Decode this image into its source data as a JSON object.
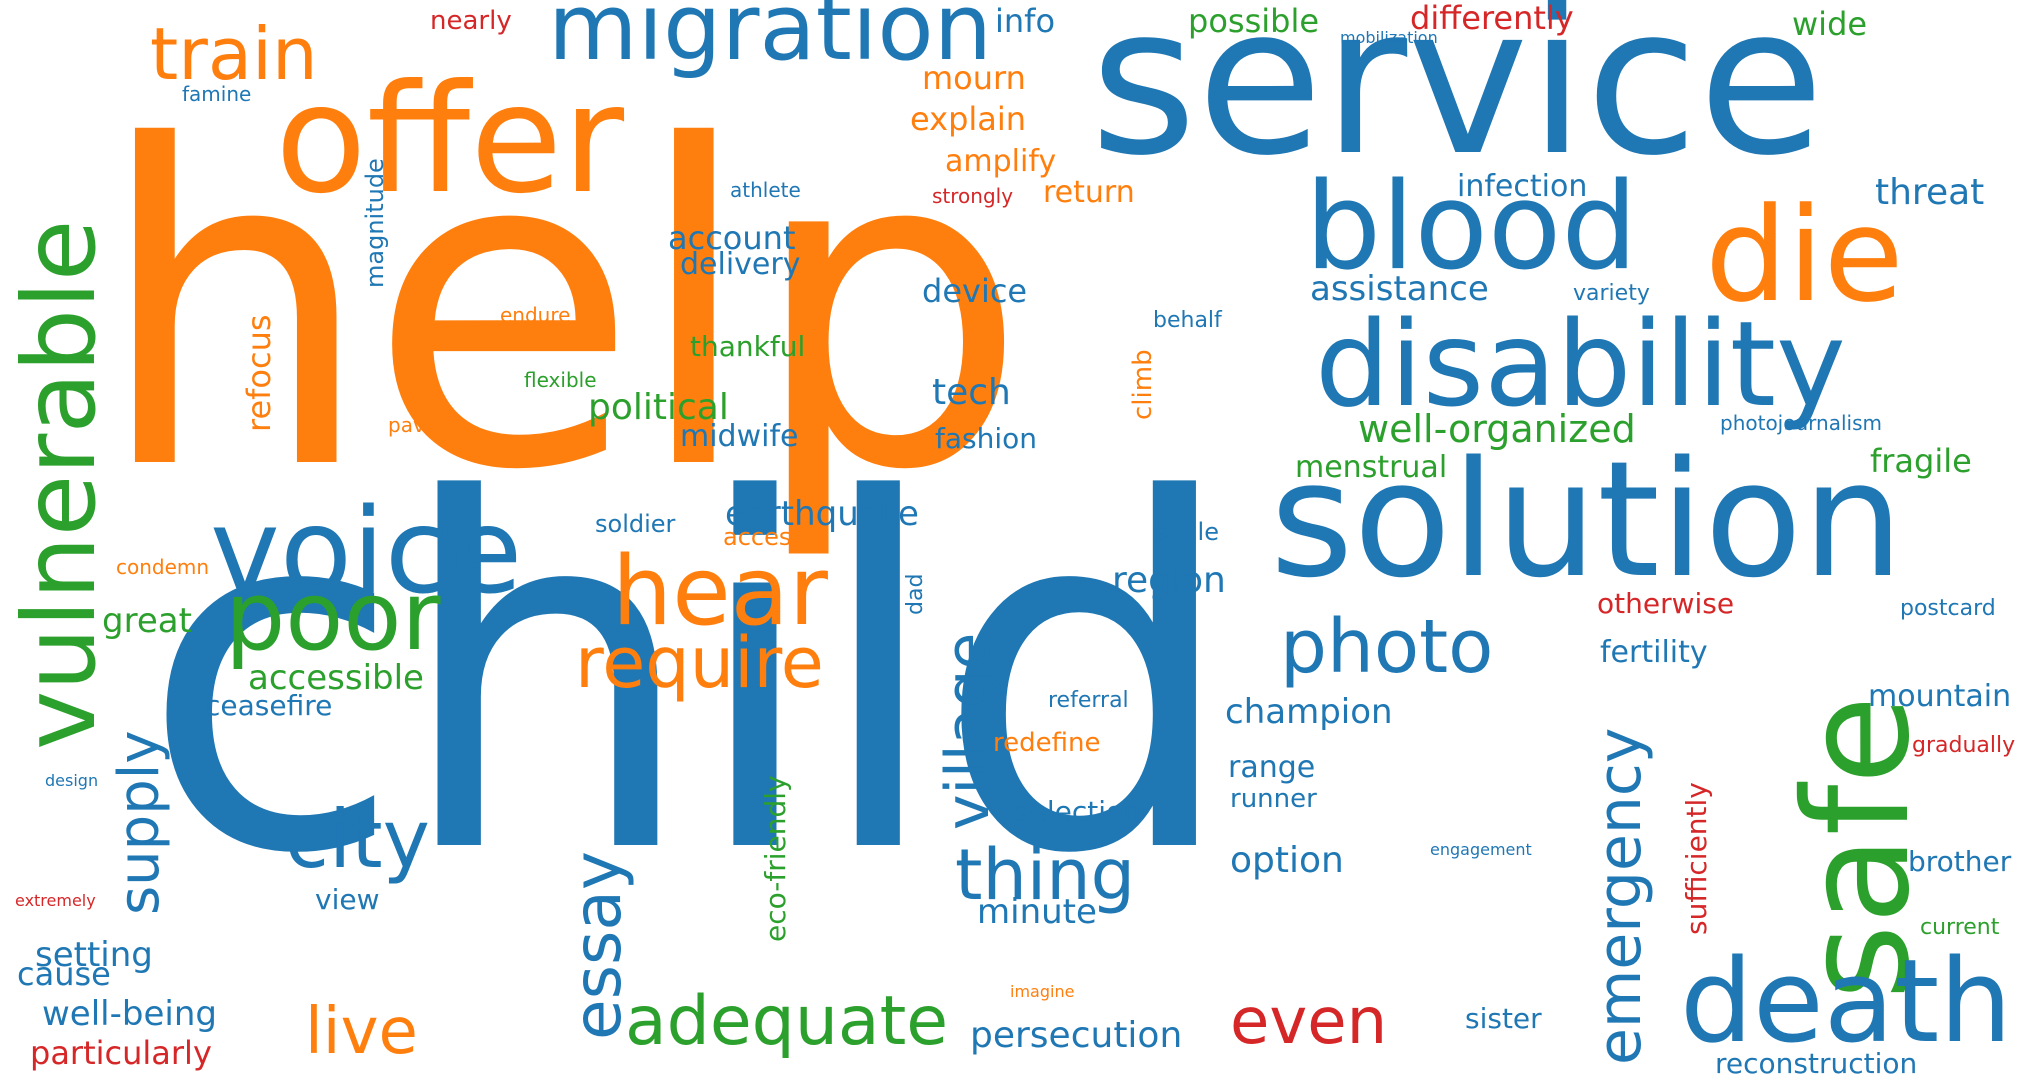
{
  "palette": {
    "blue": "#1f77b4",
    "orange": "#ff7f0e",
    "green": "#2ca02c",
    "red": "#d62728"
  },
  "words": [
    {
      "text": "help",
      "color": "blue_or_orange"
    },
    {
      "text": "child"
    },
    {
      "text": "service"
    },
    {
      "text": "offer"
    },
    {
      "text": "vulnerable"
    },
    {
      "text": "migration"
    },
    {
      "text": "train"
    },
    {
      "text": "blood"
    },
    {
      "text": "die"
    },
    {
      "text": "disability"
    },
    {
      "text": "solution"
    },
    {
      "text": "safe"
    },
    {
      "text": "voice"
    },
    {
      "text": "poor"
    },
    {
      "text": "hear"
    },
    {
      "text": "require"
    },
    {
      "text": "death"
    },
    {
      "text": "photo"
    },
    {
      "text": "city"
    },
    {
      "text": "thing"
    },
    {
      "text": "village"
    },
    {
      "text": "essay"
    },
    {
      "text": "adequate"
    },
    {
      "text": "emergency"
    },
    {
      "text": "supply"
    },
    {
      "text": "even"
    },
    {
      "text": "live"
    },
    {
      "text": "info"
    },
    {
      "text": "possible"
    },
    {
      "text": "differently"
    },
    {
      "text": "wide"
    },
    {
      "text": "nearly"
    },
    {
      "text": "mobilization"
    },
    {
      "text": "famine"
    },
    {
      "text": "mourn"
    },
    {
      "text": "explain"
    },
    {
      "text": "amplify"
    },
    {
      "text": "magnitude"
    },
    {
      "text": "athlete"
    },
    {
      "text": "strongly"
    },
    {
      "text": "return"
    },
    {
      "text": "infection"
    },
    {
      "text": "threat"
    },
    {
      "text": "account"
    },
    {
      "text": "delivery"
    },
    {
      "text": "device"
    },
    {
      "text": "assistance"
    },
    {
      "text": "variety"
    },
    {
      "text": "refocus"
    },
    {
      "text": "endure"
    },
    {
      "text": "thankful"
    },
    {
      "text": "behalf"
    },
    {
      "text": "climb"
    },
    {
      "text": "flexible"
    },
    {
      "text": "political"
    },
    {
      "text": "tech"
    },
    {
      "text": "pave"
    },
    {
      "text": "midwife"
    },
    {
      "text": "fashion"
    },
    {
      "text": "well-organized"
    },
    {
      "text": "photojournalism"
    },
    {
      "text": "menstrual"
    },
    {
      "text": "fragile"
    },
    {
      "text": "earthquake"
    },
    {
      "text": "soldier"
    },
    {
      "text": "access"
    },
    {
      "text": "smile"
    },
    {
      "text": "condemn"
    },
    {
      "text": "region"
    },
    {
      "text": "dad"
    },
    {
      "text": "great"
    },
    {
      "text": "otherwise"
    },
    {
      "text": "postcard"
    },
    {
      "text": "fertility"
    },
    {
      "text": "accessible"
    },
    {
      "text": "ceasefire"
    },
    {
      "text": "referral"
    },
    {
      "text": "champion"
    },
    {
      "text": "mountain"
    },
    {
      "text": "redefine"
    },
    {
      "text": "gradually"
    },
    {
      "text": "design"
    },
    {
      "text": "range"
    },
    {
      "text": "runner"
    },
    {
      "text": "sufficiently"
    },
    {
      "text": "selection"
    },
    {
      "text": "eco-friendly"
    },
    {
      "text": "option"
    },
    {
      "text": "engagement"
    },
    {
      "text": "brother"
    },
    {
      "text": "extremely"
    },
    {
      "text": "view"
    },
    {
      "text": "minute"
    },
    {
      "text": "setting"
    },
    {
      "text": "cause"
    },
    {
      "text": "current"
    },
    {
      "text": "well-being"
    },
    {
      "text": "imagine"
    },
    {
      "text": "persecution"
    },
    {
      "text": "sister"
    },
    {
      "text": "particularly"
    },
    {
      "text": "reconstruction"
    }
  ]
}
